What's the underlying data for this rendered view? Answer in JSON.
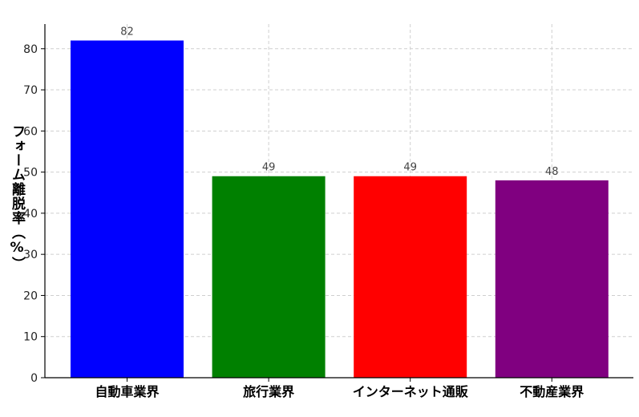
{
  "chart_data": {
    "type": "bar",
    "title": "",
    "xlabel": "",
    "ylabel": "フォーム離脱率（%）",
    "categories": [
      "自動車業界",
      "旅行業界",
      "インターネット通販",
      "不動産業界"
    ],
    "values": [
      82,
      49,
      49,
      48
    ],
    "data_labels": [
      "82",
      "49",
      "49",
      "48"
    ],
    "colors": [
      "#0000ff",
      "#008000",
      "#ff0000",
      "#800080"
    ],
    "ylim": [
      0,
      86
    ],
    "yticks": [
      0,
      10,
      20,
      30,
      40,
      50,
      60,
      70,
      80
    ],
    "grid": true
  }
}
